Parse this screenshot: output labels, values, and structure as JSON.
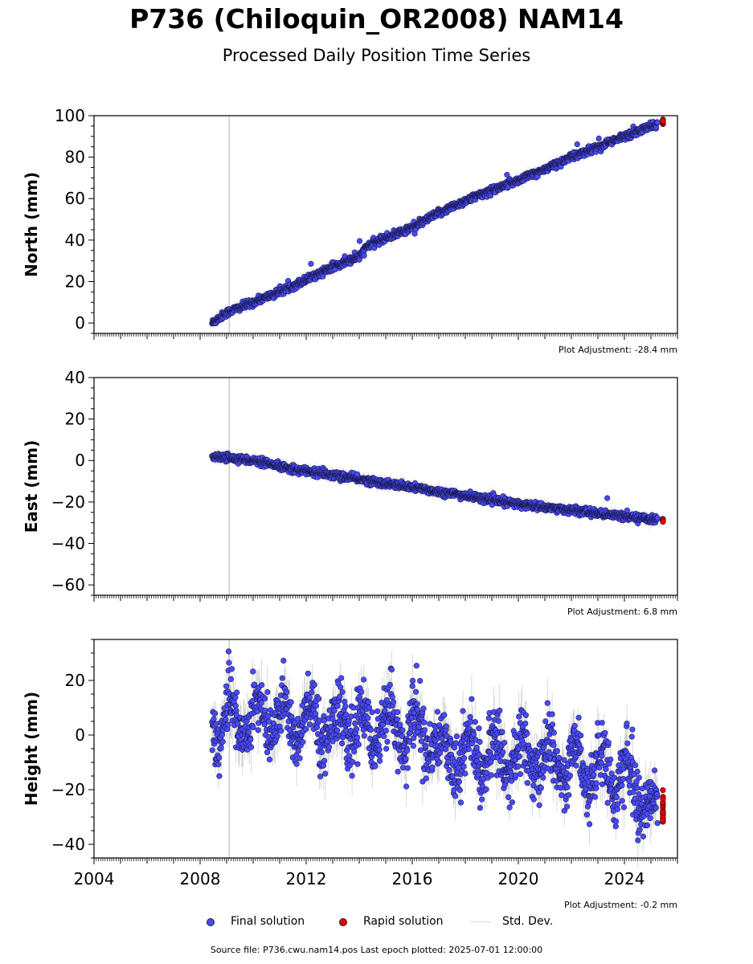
{
  "title": "P736 (Chiloquin_OR2008) NAM14",
  "subtitle": "Processed Daily Position Time Series",
  "colors": {
    "final": "#4a4aff",
    "rapid": "#e60000",
    "stddev": "#c8c8c8",
    "event_line": "#cccccc"
  },
  "legend": {
    "final": "Final solution",
    "rapid": "Rapid solution",
    "stddev": "Std. Dev."
  },
  "source_text": "Source file: P736.cwu.nam14.pos  Last epoch plotted: 2025-07-01 12:00:00",
  "chart_data": [
    {
      "type": "scatter",
      "ylabel": "North (mm)",
      "xlim": [
        2004,
        2026
      ],
      "ylim": [
        -5,
        100
      ],
      "yticks": [
        0,
        20,
        40,
        60,
        80,
        100
      ],
      "adjustment_text": "Plot Adjustment: -28.4 mm",
      "event_x": 2009.1,
      "final_start": 2008.45,
      "final_end": 2025.25,
      "rapid_start": 2025.25,
      "rapid_end": 2025.5,
      "series": [
        {
          "name": "Final solution",
          "x": [
            2008.45,
            2009.0,
            2010.0,
            2011.0,
            2012.0,
            2013.0,
            2014.0,
            2014.3,
            2014.8,
            2016.0,
            2017.0,
            2018.0,
            2019.0,
            2020.0,
            2021.0,
            2022.0,
            2023.0,
            2024.0,
            2025.25
          ],
          "y": [
            0,
            5,
            10,
            15,
            21,
            27,
            32,
            37,
            40,
            46,
            53,
            59,
            64,
            69,
            74,
            80,
            85,
            90,
            96
          ]
        },
        {
          "name": "Rapid solution",
          "x": [
            2025.3,
            2025.5
          ],
          "y": [
            96.5,
            97.5
          ]
        }
      ]
    },
    {
      "type": "scatter",
      "ylabel": "East (mm)",
      "xlim": [
        2004,
        2026
      ],
      "ylim": [
        -65,
        40
      ],
      "yticks": [
        -60,
        -40,
        -20,
        0,
        20,
        40
      ],
      "adjustment_text": "Plot Adjustment: 6.8 mm",
      "event_x": 2009.1,
      "final_start": 2008.45,
      "final_end": 2025.25,
      "rapid_start": 2025.25,
      "rapid_end": 2025.5,
      "series": [
        {
          "name": "Final solution",
          "x": [
            2008.45,
            2009.0,
            2010.0,
            2011.0,
            2012.0,
            2013.0,
            2014.0,
            2015.0,
            2016.0,
            2017.0,
            2018.0,
            2019.0,
            2020.0,
            2021.0,
            2022.0,
            2023.0,
            2024.0,
            2025.25
          ],
          "y": [
            1.5,
            1.5,
            0,
            -3,
            -5,
            -7,
            -9,
            -11,
            -13,
            -15,
            -17,
            -19,
            -21,
            -22.5,
            -24,
            -25.5,
            -27,
            -28.5
          ]
        },
        {
          "name": "Rapid solution",
          "x": [
            2025.3,
            2025.5
          ],
          "y": [
            -28.5,
            -29
          ]
        }
      ]
    },
    {
      "type": "scatter",
      "ylabel": "Height (mm)",
      "xlabel_ticks": [
        "2004",
        "2008",
        "2012",
        "2016",
        "2020",
        "2024"
      ],
      "xlim": [
        2004,
        2026
      ],
      "ylim": [
        -45,
        35
      ],
      "yticks": [
        -40,
        -20,
        0,
        20
      ],
      "adjustment_text": "Plot Adjustment: -0.2 mm",
      "event_x": 2009.1,
      "final_start": 2008.45,
      "final_end": 2025.25,
      "rapid_start": 2025.25,
      "rapid_end": 2025.5,
      "series": [
        {
          "name": "Final solution",
          "x": [
            2008.45,
            2010.0,
            2012.0,
            2014.0,
            2016.0,
            2017.0,
            2018.0,
            2020.0,
            2022.0,
            2024.0,
            2025.25
          ],
          "y": [
            3,
            7,
            4,
            3,
            2,
            -5,
            -7,
            -8,
            -10,
            -15,
            -28
          ]
        },
        {
          "name": "Rapid solution",
          "x": [
            2025.3,
            2025.5
          ],
          "y": [
            -22,
            -32
          ]
        }
      ]
    }
  ]
}
